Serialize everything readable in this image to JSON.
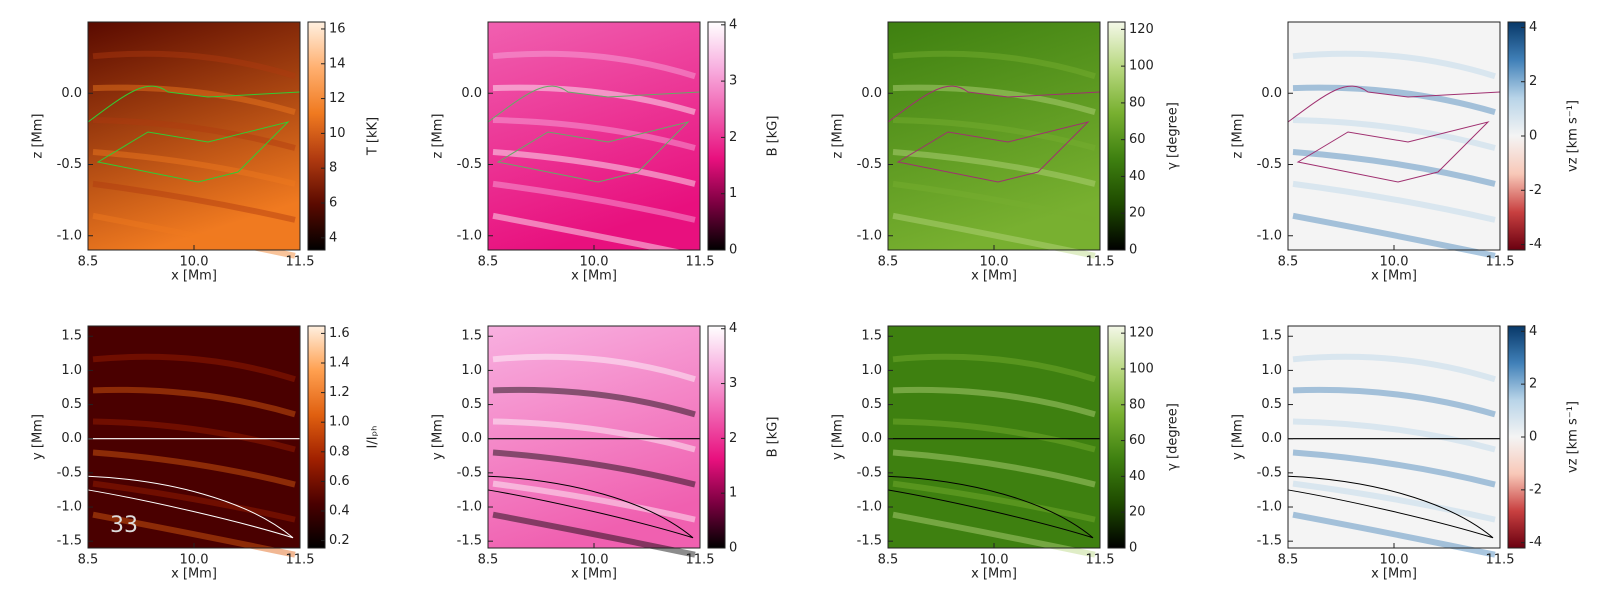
{
  "chart_data": [
    {
      "type": "heatmap",
      "xlabel": "x [Mm]",
      "ylabel": "z [Mm]",
      "xlim": [
        8.5,
        11.5
      ],
      "xticks": [
        8.5,
        {
          "value": 10,
          "label": "10.0"
        },
        11.5
      ],
      "ylim": [
        -1.1,
        0.5
      ],
      "yticks": [
        {
          "value": -1,
          "label": "-1.0"
        },
        -0.5,
        {
          "value": 0,
          "label": "0.0"
        }
      ],
      "colorbar": {
        "label": "T [kK]",
        "lim": [
          3.3,
          16.4
        ],
        "ticks": [
          4,
          6,
          8,
          10,
          12,
          14,
          16
        ],
        "colors": [
          "#000000",
          "#5a0a00",
          "#b03a10",
          "#f07a20",
          "#ffb070",
          "#fff0e0"
        ]
      }
    },
    {
      "type": "heatmap",
      "xlabel": "x [Mm]",
      "ylabel": "z [Mm]",
      "xlim": [
        8.5,
        11.5
      ],
      "xticks": [
        8.5,
        {
          "value": 10,
          "label": "10.0"
        },
        11.5
      ],
      "ylim": [
        -1.1,
        0.5
      ],
      "yticks": [
        {
          "value": -1,
          "label": "-1.0"
        },
        -0.5,
        {
          "value": 0,
          "label": "0.0"
        }
      ],
      "colorbar": {
        "label": "B [kG]",
        "lim": [
          0,
          4.05
        ],
        "ticks": [
          0,
          1,
          2,
          3,
          4
        ],
        "colors": [
          "#000000",
          "#7a0040",
          "#e8107e",
          "#f060b0",
          "#f8b0e0",
          "#ffffff"
        ]
      }
    },
    {
      "type": "heatmap",
      "xlabel": "x [Mm]",
      "ylabel": "z [Mm]",
      "xlim": [
        8.5,
        11.5
      ],
      "xticks": [
        8.5,
        {
          "value": 10,
          "label": "10.0"
        },
        11.5
      ],
      "ylim": [
        -1.1,
        0.5
      ],
      "yticks": [
        {
          "value": -1,
          "label": "-1.0"
        },
        -0.5,
        {
          "value": 0,
          "label": "0.0"
        }
      ],
      "colorbar": {
        "label": "γ [degree]",
        "lim": [
          0,
          124
        ],
        "ticks": [
          0,
          20,
          40,
          60,
          80,
          100,
          120
        ],
        "colors": [
          "#000000",
          "#1e4a00",
          "#3e8010",
          "#78b030",
          "#b8d880",
          "#f4f8e8"
        ]
      }
    },
    {
      "type": "heatmap",
      "xlabel": "x [Mm]",
      "ylabel": "z [Mm]",
      "xlim": [
        8.5,
        11.5
      ],
      "xticks": [
        8.5,
        {
          "value": 10,
          "label": "10.0"
        },
        11.5
      ],
      "ylim": [
        -1.1,
        0.5
      ],
      "yticks": [
        {
          "value": -1,
          "label": "-1.0"
        },
        -0.5,
        {
          "value": 0,
          "label": "0.0"
        }
      ],
      "colorbar": {
        "label": "vz [km s⁻¹]",
        "lim": [
          -4.2,
          4.2
        ],
        "ticks": [
          -4,
          -2,
          0,
          2,
          4
        ],
        "colors": [
          "#6a0010",
          "#c84040",
          "#f8c8b8",
          "#f4f4f4",
          "#b8d4e8",
          "#4080b8",
          "#083868"
        ]
      }
    },
    {
      "type": "heatmap",
      "xlabel": "x [Mm]",
      "ylabel": "y [Mm]",
      "xlim": [
        8.5,
        11.5
      ],
      "xticks": [
        8.5,
        {
          "value": 10,
          "label": "10.0"
        },
        11.5
      ],
      "ylim": [
        -1.6,
        1.65
      ],
      "yticks": [
        -1.5,
        {
          "value": -1,
          "label": "-1.0"
        },
        -0.5,
        {
          "value": 0,
          "label": "0.0"
        },
        0.5,
        {
          "value": 1,
          "label": "1.0"
        },
        1.5
      ],
      "colorbar": {
        "label": "I/Iₚₕ",
        "lim": [
          0.15,
          1.65
        ],
        "ticks": [
          0.2,
          0.4,
          0.6,
          0.8,
          {
            "value": 1,
            "label": "1.0"
          },
          1.2,
          1.4,
          1.6
        ],
        "colors": [
          "#000000",
          "#4a0000",
          "#a02000",
          "#e06010",
          "#ffa050",
          "#fff0e0"
        ]
      },
      "annotation": "33"
    },
    {
      "type": "heatmap",
      "xlabel": "x [Mm]",
      "ylabel": "y [Mm]",
      "xlim": [
        8.5,
        11.5
      ],
      "xticks": [
        8.5,
        {
          "value": 10,
          "label": "10.0"
        },
        11.5
      ],
      "ylim": [
        -1.6,
        1.65
      ],
      "yticks": [
        -1.5,
        {
          "value": -1,
          "label": "-1.0"
        },
        -0.5,
        {
          "value": 0,
          "label": "0.0"
        },
        0.5,
        {
          "value": 1,
          "label": "1.0"
        },
        1.5
      ],
      "colorbar": {
        "label": "B [kG]",
        "lim": [
          0,
          4.05
        ],
        "ticks": [
          0,
          1,
          2,
          3,
          4
        ],
        "colors": [
          "#000000",
          "#7a0040",
          "#e8107e",
          "#f060b0",
          "#f8b0e0",
          "#ffffff"
        ]
      }
    },
    {
      "type": "heatmap",
      "xlabel": "x [Mm]",
      "ylabel": "y [Mm]",
      "xlim": [
        8.5,
        11.5
      ],
      "xticks": [
        8.5,
        {
          "value": 10,
          "label": "10.0"
        },
        11.5
      ],
      "ylim": [
        -1.6,
        1.65
      ],
      "yticks": [
        -1.5,
        {
          "value": -1,
          "label": "-1.0"
        },
        -0.5,
        {
          "value": 0,
          "label": "0.0"
        },
        0.5,
        {
          "value": 1,
          "label": "1.0"
        },
        1.5
      ],
      "colorbar": {
        "label": "γ [degree]",
        "lim": [
          0,
          124
        ],
        "ticks": [
          0,
          20,
          40,
          60,
          80,
          100,
          120
        ],
        "colors": [
          "#000000",
          "#1e4a00",
          "#3e8010",
          "#78b030",
          "#b8d880",
          "#f4f8e8"
        ]
      }
    },
    {
      "type": "heatmap",
      "xlabel": "x [Mm]",
      "ylabel": "y [Mm]",
      "xlim": [
        8.5,
        11.5
      ],
      "xticks": [
        8.5,
        {
          "value": 10,
          "label": "10.0"
        },
        11.5
      ],
      "ylim": [
        -1.6,
        1.65
      ],
      "yticks": [
        -1.5,
        {
          "value": -1,
          "label": "-1.0"
        },
        -0.5,
        {
          "value": 0,
          "label": "0.0"
        },
        0.5,
        {
          "value": 1,
          "label": "1.0"
        },
        1.5
      ],
      "colorbar": {
        "label": "vz [km s⁻¹]",
        "lim": [
          -4.2,
          4.2
        ],
        "ticks": [
          -4,
          -2,
          0,
          2,
          4
        ],
        "colors": [
          "#6a0010",
          "#c84040",
          "#f8c8b8",
          "#f4f4f4",
          "#b8d4e8",
          "#4080b8",
          "#083868"
        ]
      }
    }
  ]
}
